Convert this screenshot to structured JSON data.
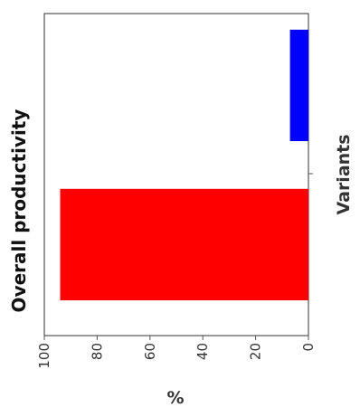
{
  "chart_data": {
    "type": "bar",
    "orientation": "horizontal",
    "title": "Overall productivity",
    "xlabel": "%",
    "ylabel": "Variants",
    "xlim": [
      0,
      100
    ],
    "x_ticks": [
      "0",
      "20",
      "40",
      "60",
      "80",
      "100"
    ],
    "x_reversed": true,
    "grid": false,
    "series": [
      {
        "values": [
          94,
          7
        ],
        "colors": [
          "#ff0000",
          "#0000ff"
        ]
      }
    ]
  }
}
